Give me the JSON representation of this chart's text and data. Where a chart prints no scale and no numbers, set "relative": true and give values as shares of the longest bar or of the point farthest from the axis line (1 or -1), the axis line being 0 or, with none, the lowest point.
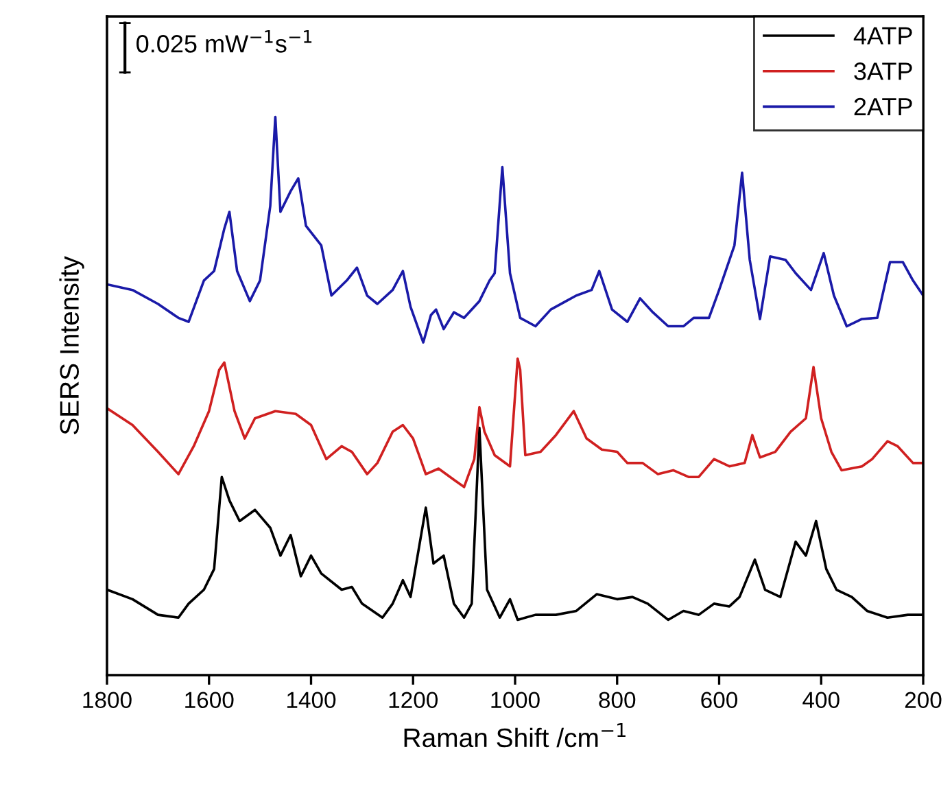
{
  "chart_data": {
    "type": "line",
    "xlabel": "Raman Shift /cm$^{−1}$",
    "ylabel": "SERS Intensity",
    "relative": true,
    "tick_labels": "x",
    "legend": "top right",
    "grid": false,
    "marker": "none",
    "line_style": "solid",
    "xlim": [
      1800,
      200
    ],
    "xticks": [
      1800,
      1600,
      1400,
      1200,
      1000,
      800,
      600,
      400,
      200
    ],
    "annotations": [
      "0.025 mW$^{−1}$s$^{−1}$"
    ],
    "series": [
      {
        "name": "4ATP",
        "color": "#000000",
        "x": [
          1800,
          1750,
          1700,
          1660,
          1640,
          1610,
          1590,
          1575,
          1560,
          1540,
          1510,
          1480,
          1460,
          1440,
          1420,
          1400,
          1380,
          1340,
          1320,
          1300,
          1260,
          1240,
          1220,
          1205,
          1175,
          1160,
          1140,
          1120,
          1100,
          1085,
          1070,
          1055,
          1030,
          1010,
          995,
          960,
          920,
          880,
          840,
          800,
          770,
          740,
          700,
          670,
          640,
          610,
          580,
          560,
          530,
          510,
          480,
          450,
          430,
          410,
          390,
          370,
          340,
          310,
          270,
          230,
          200
        ],
        "values": [
          0.153,
          0.136,
          0.108,
          0.103,
          0.128,
          0.153,
          0.19,
          0.355,
          0.313,
          0.276,
          0.296,
          0.264,
          0.214,
          0.251,
          0.177,
          0.214,
          0.182,
          0.153,
          0.158,
          0.128,
          0.103,
          0.128,
          0.17,
          0.14,
          0.3,
          0.2,
          0.214,
          0.128,
          0.103,
          0.128,
          0.443,
          0.153,
          0.103,
          0.136,
          0.099,
          0.108,
          0.108,
          0.115,
          0.145,
          0.136,
          0.14,
          0.128,
          0.099,
          0.115,
          0.108,
          0.128,
          0.123,
          0.14,
          0.207,
          0.153,
          0.14,
          0.239,
          0.214,
          0.276,
          0.19,
          0.153,
          0.14,
          0.115,
          0.103,
          0.108,
          0.108
        ]
      },
      {
        "name": "3ATP",
        "color": "#d02020",
        "x": [
          1800,
          1750,
          1700,
          1660,
          1630,
          1600,
          1580,
          1570,
          1550,
          1530,
          1510,
          1470,
          1430,
          1400,
          1370,
          1340,
          1320,
          1290,
          1270,
          1240,
          1220,
          1200,
          1175,
          1150,
          1120,
          1100,
          1080,
          1070,
          1060,
          1040,
          1010,
          995,
          990,
          980,
          950,
          920,
          885,
          860,
          830,
          800,
          780,
          750,
          720,
          690,
          660,
          640,
          610,
          580,
          550,
          535,
          520,
          490,
          460,
          430,
          415,
          400,
          380,
          360,
          320,
          300,
          270,
          250,
          220,
          200
        ],
        "values": [
          0.478,
          0.448,
          0.4,
          0.36,
          0.41,
          0.473,
          0.547,
          0.56,
          0.473,
          0.424,
          0.46,
          0.473,
          0.468,
          0.448,
          0.387,
          0.41,
          0.4,
          0.36,
          0.38,
          0.436,
          0.448,
          0.424,
          0.36,
          0.37,
          0.35,
          0.337,
          0.387,
          0.48,
          0.436,
          0.394,
          0.374,
          0.567,
          0.547,
          0.394,
          0.4,
          0.43,
          0.473,
          0.424,
          0.404,
          0.4,
          0.38,
          0.38,
          0.36,
          0.367,
          0.355,
          0.355,
          0.387,
          0.374,
          0.38,
          0.43,
          0.39,
          0.4,
          0.436,
          0.46,
          0.552,
          0.46,
          0.4,
          0.367,
          0.374,
          0.387,
          0.419,
          0.41,
          0.38,
          0.38
        ]
      },
      {
        "name": "2ATP",
        "color": "#1a1aa8",
        "x": [
          1800,
          1750,
          1700,
          1660,
          1640,
          1610,
          1590,
          1570,
          1560,
          1545,
          1520,
          1500,
          1480,
          1470,
          1460,
          1440,
          1425,
          1410,
          1380,
          1360,
          1330,
          1310,
          1290,
          1270,
          1240,
          1220,
          1205,
          1180,
          1165,
          1155,
          1140,
          1120,
          1100,
          1070,
          1050,
          1040,
          1025,
          1010,
          990,
          960,
          930,
          900,
          880,
          850,
          835,
          810,
          780,
          755,
          730,
          700,
          670,
          650,
          620,
          600,
          570,
          555,
          540,
          520,
          500,
          470,
          450,
          420,
          395,
          375,
          350,
          320,
          290,
          265,
          240,
          220,
          200
        ],
        "values": [
          0.7,
          0.69,
          0.665,
          0.64,
          0.633,
          0.707,
          0.724,
          0.8,
          0.83,
          0.724,
          0.67,
          0.707,
          0.84,
          1.0,
          0.83,
          0.867,
          0.89,
          0.805,
          0.77,
          0.68,
          0.707,
          0.73,
          0.68,
          0.665,
          0.69,
          0.724,
          0.66,
          0.596,
          0.645,
          0.655,
          0.62,
          0.65,
          0.64,
          0.67,
          0.707,
          0.72,
          0.91,
          0.72,
          0.64,
          0.625,
          0.655,
          0.67,
          0.68,
          0.69,
          0.724,
          0.655,
          0.633,
          0.675,
          0.65,
          0.625,
          0.625,
          0.64,
          0.64,
          0.69,
          0.77,
          0.9,
          0.744,
          0.638,
          0.75,
          0.744,
          0.72,
          0.69,
          0.756,
          0.68,
          0.625,
          0.638,
          0.64,
          0.74,
          0.74,
          0.707,
          0.68
        ]
      }
    ]
  }
}
